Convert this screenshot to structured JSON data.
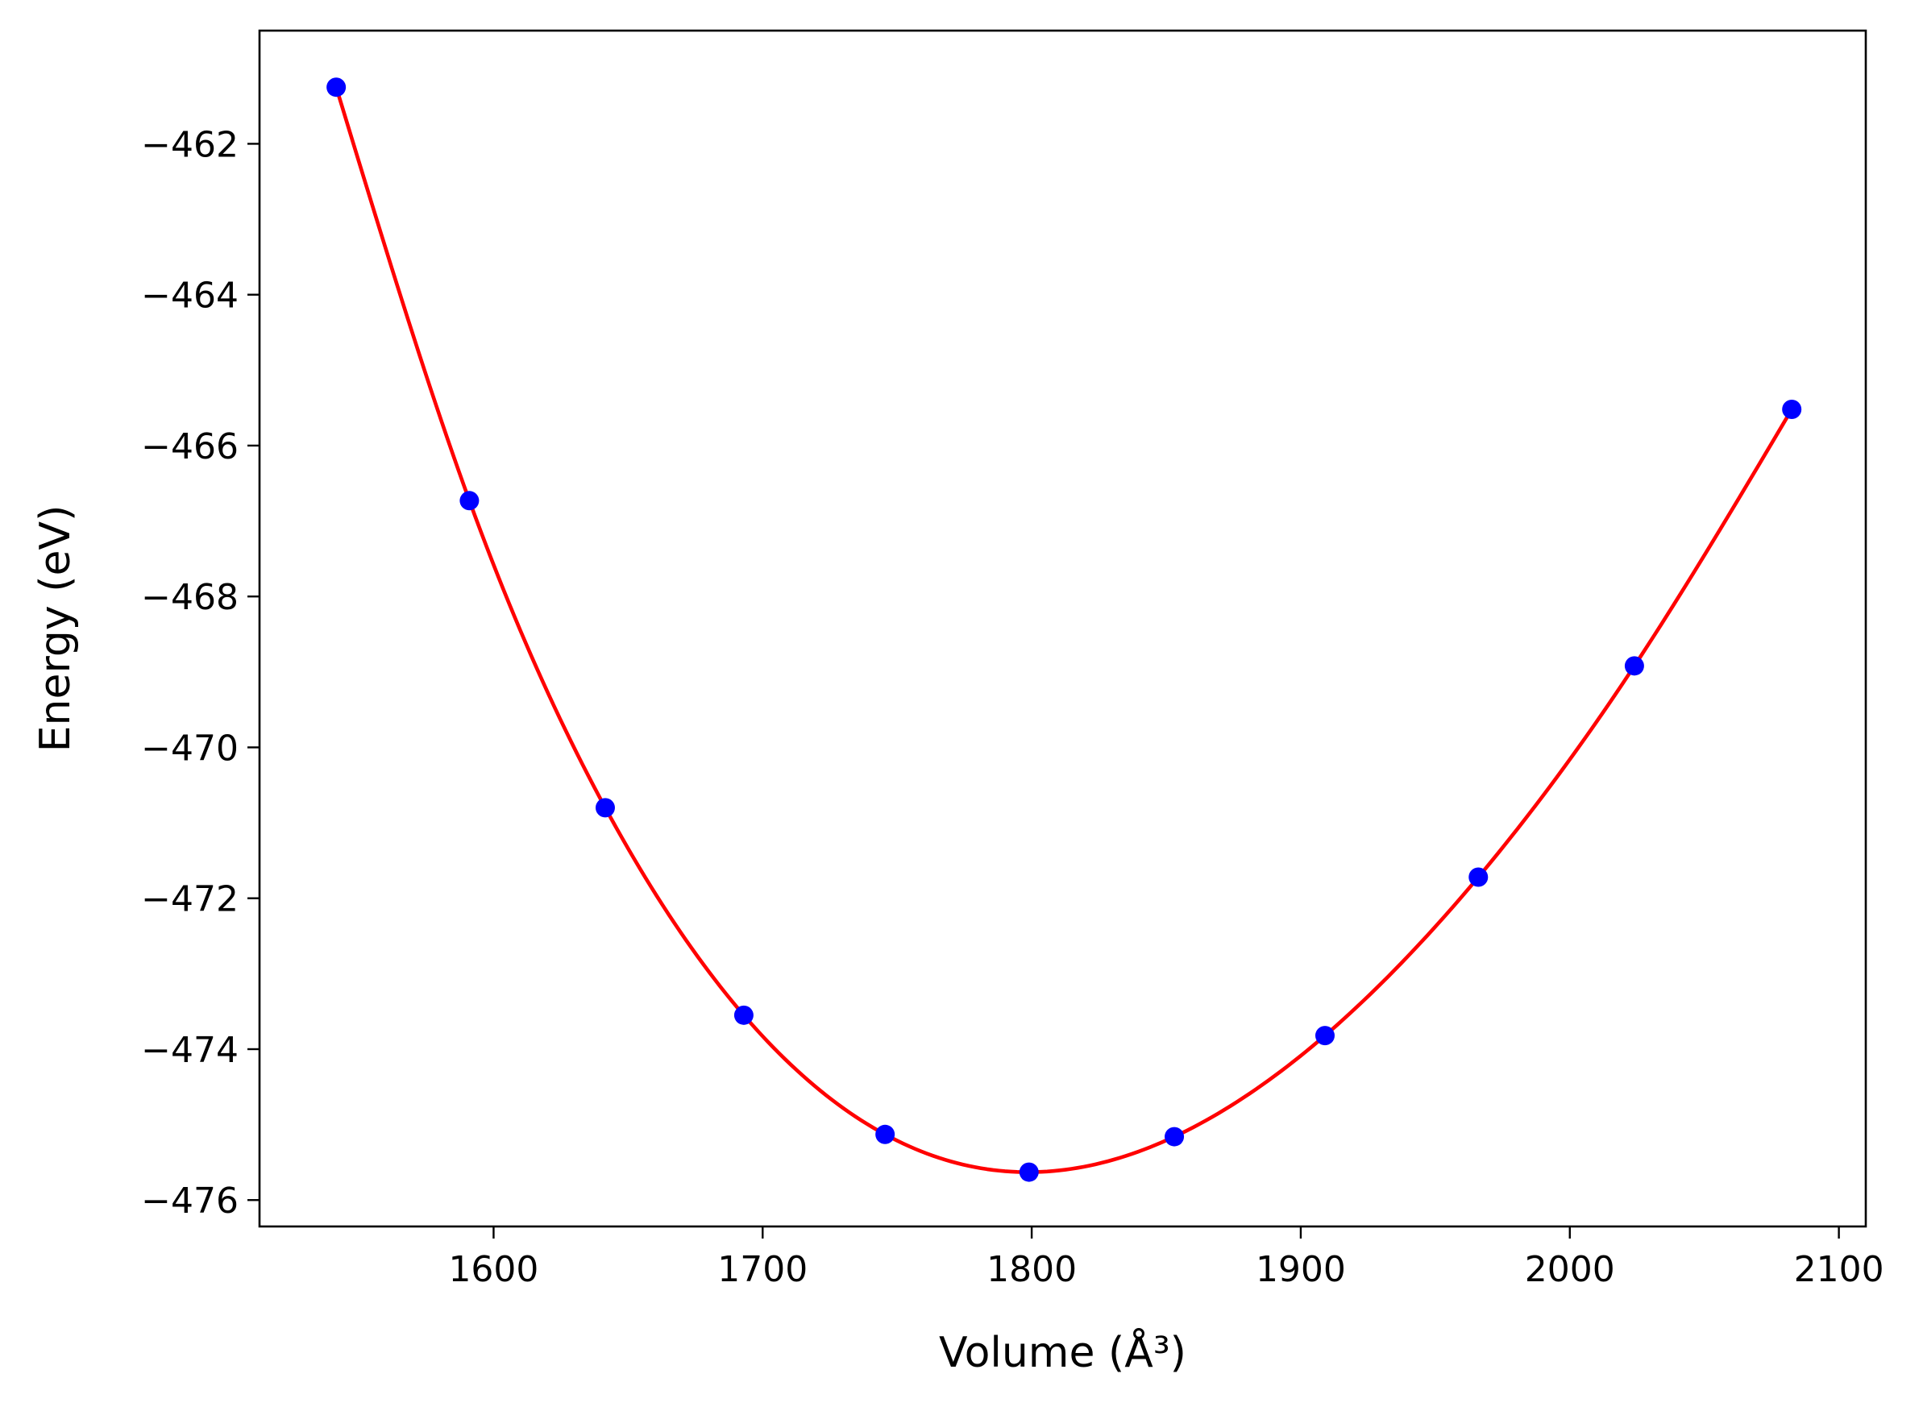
{
  "chart_data": {
    "type": "line",
    "title": "",
    "xlabel": "Volume (Å³)",
    "ylabel": "Energy (eV)",
    "xlim": [
      1513,
      2110
    ],
    "ylim": [
      -476.35,
      -460.5
    ],
    "xticks": [
      1600,
      1700,
      1800,
      1900,
      2000,
      2100
    ],
    "xtick_labels": [
      "1600",
      "1700",
      "1800",
      "1900",
      "2000",
      "2100"
    ],
    "yticks": [
      -462,
      -464,
      -466,
      -468,
      -470,
      -472,
      -474,
      -476
    ],
    "ytick_labels": [
      "−462",
      "−464",
      "−466",
      "−468",
      "−470",
      "−472",
      "−474",
      "−476"
    ],
    "grid": false,
    "legend": "none",
    "series": [
      {
        "kind": "scatter",
        "color": "#0000ff",
        "x": [
          1541.5,
          1591,
          1641.5,
          1693,
          1745.5,
          1799,
          1853,
          1909,
          1966,
          2024,
          2082.5
        ],
        "y": [
          -461.25,
          -466.73,
          -470.8,
          -473.55,
          -475.13,
          -475.63,
          -475.16,
          -473.82,
          -471.72,
          -468.92,
          -465.52
        ]
      },
      {
        "kind": "line",
        "color": "#ff0000",
        "x": [
          1541.5,
          1591,
          1641.5,
          1693,
          1745.5,
          1799,
          1853,
          1909,
          1966,
          2024,
          2082.5
        ],
        "y": [
          -461.25,
          -466.73,
          -470.8,
          -473.55,
          -475.13,
          -475.63,
          -475.16,
          -473.82,
          -471.72,
          -468.92,
          -465.52
        ]
      }
    ]
  }
}
